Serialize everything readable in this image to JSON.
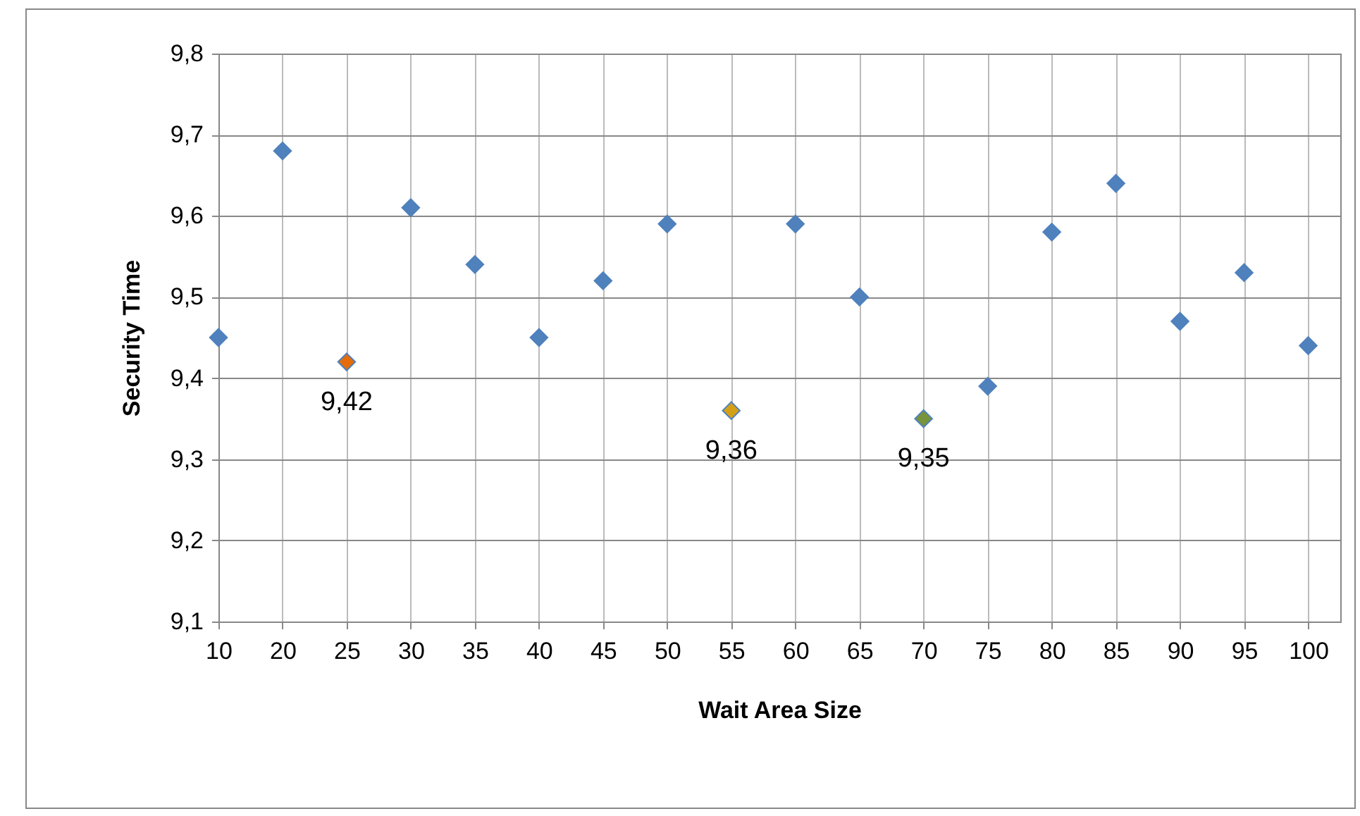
{
  "chart_data": {
    "type": "scatter",
    "xlabel": "Wait Area Size",
    "ylabel": "Security Time",
    "categories": [
      "10",
      "20",
      "25",
      "30",
      "35",
      "40",
      "45",
      "50",
      "55",
      "60",
      "65",
      "70",
      "75",
      "80",
      "85",
      "90",
      "95",
      "100"
    ],
    "values": [
      9.45,
      9.68,
      9.42,
      9.61,
      9.54,
      9.45,
      9.52,
      9.59,
      9.36,
      9.59,
      9.5,
      9.35,
      9.39,
      9.58,
      9.64,
      9.47,
      9.53,
      9.44
    ],
    "colors": [
      "#4f81bd",
      "#4f81bd",
      "#e46c0a",
      "#4f81bd",
      "#4f81bd",
      "#4f81bd",
      "#4f81bd",
      "#4f81bd",
      "#d4a017",
      "#4f81bd",
      "#4f81bd",
      "#77933c",
      "#4f81bd",
      "#4f81bd",
      "#4f81bd",
      "#4f81bd",
      "#4f81bd",
      "#4f81bd"
    ],
    "value_labels": [
      null,
      null,
      "9,42",
      null,
      null,
      null,
      null,
      null,
      "9,36",
      null,
      null,
      "9,35",
      null,
      null,
      null,
      null,
      null,
      null
    ],
    "ylim": [
      9.1,
      9.8
    ],
    "yticks": [
      {
        "value": 9.1,
        "label": "9,1"
      },
      {
        "value": 9.2,
        "label": "9,2"
      },
      {
        "value": 9.3,
        "label": "9,3"
      },
      {
        "value": 9.4,
        "label": "9,4"
      },
      {
        "value": 9.5,
        "label": "9,5"
      },
      {
        "value": 9.6,
        "label": "9,6"
      },
      {
        "value": 9.7,
        "label": "9,7"
      },
      {
        "value": 9.8,
        "label": "9,8"
      }
    ],
    "grid": true,
    "marker": "diamond"
  }
}
